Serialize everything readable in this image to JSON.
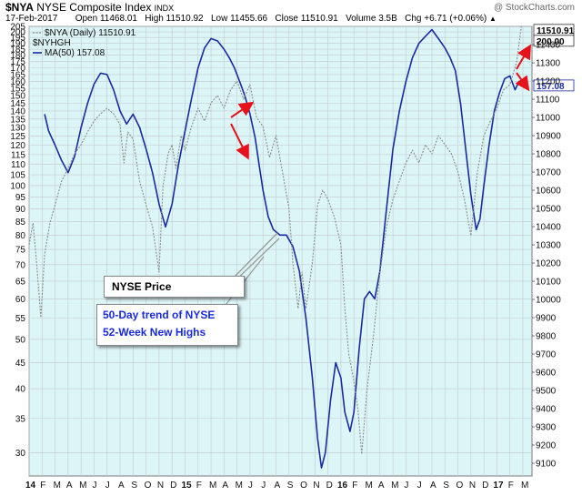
{
  "header": {
    "symbol": "$NYA",
    "name": "NYSE Composite Index",
    "exchange": "INDX",
    "watermark": "@ StockCharts.com",
    "date": "17-Feb-2017",
    "open_label": "Open",
    "open": "11468.01",
    "high_label": "High",
    "high": "11510.92",
    "low_label": "Low",
    "low": "11455.66",
    "close_label": "Close",
    "close": "11510.91",
    "volume_label": "Volume",
    "volume": "3.5B",
    "chg_label": "Chg",
    "chg": "+6.71 (+0.06%)"
  },
  "legend": {
    "line1": "$NYA (Daily) 11510.91",
    "line2": "$NYHGH",
    "line3": "MA(50) 157.08"
  },
  "price_tags": {
    "price": "11510.91",
    "ma_high": "200.00",
    "ma_low": "157.08"
  },
  "callouts": {
    "price": "NYSE Price",
    "trend_line1": "50-Day trend of NYSE",
    "trend_line2": "52-Week New Highs"
  },
  "colors": {
    "plot_bg": "#dcf6f8",
    "ma_line": "#1a2aa0",
    "price_line": "#8c8c8c",
    "arrow": "#e8101a",
    "callout_text_blue": "#1a2ae0"
  },
  "chart_data": {
    "type": "line",
    "left_axis": {
      "label": "$NYHGH MA(50)",
      "scale": "log",
      "ticks": [
        30,
        35,
        40,
        45,
        50,
        55,
        60,
        65,
        70,
        75,
        80,
        85,
        90,
        95,
        100,
        105,
        110,
        115,
        120,
        125,
        130,
        135,
        140,
        145,
        150,
        155,
        160,
        165,
        170,
        175,
        180,
        185,
        190,
        195,
        200,
        205
      ],
      "ylim": [
        27,
        205
      ]
    },
    "right_axis": {
      "label": "$NYA",
      "ticks": [
        9100,
        9200,
        9300,
        9400,
        9500,
        9600,
        9700,
        9800,
        9900,
        10000,
        10100,
        10200,
        10300,
        10400,
        10500,
        10600,
        10700,
        10800,
        10900,
        11000,
        11100,
        11200,
        11300,
        11400
      ],
      "ylim": [
        9030,
        11500
      ]
    },
    "x_ticks": [
      "14",
      "F",
      "M",
      "A",
      "M",
      "J",
      "J",
      "A",
      "S",
      "O",
      "N",
      "D",
      "15",
      "F",
      "M",
      "A",
      "M",
      "J",
      "J",
      "A",
      "S",
      "O",
      "N",
      "D",
      "16",
      "F",
      "M",
      "A",
      "M",
      "J",
      "J",
      "A",
      "S",
      "O",
      "N",
      "D",
      "17",
      "F",
      "M"
    ],
    "x_range_months": [
      0,
      38.7
    ],
    "grid": true,
    "series": [
      {
        "name": "MA(50)",
        "axis": "left",
        "style": "solid",
        "points": [
          [
            1.2,
            138
          ],
          [
            1.5,
            128
          ],
          [
            2.0,
            120
          ],
          [
            2.5,
            112
          ],
          [
            3.0,
            106
          ],
          [
            3.5,
            114
          ],
          [
            4.0,
            130
          ],
          [
            4.5,
            145
          ],
          [
            5.0,
            158
          ],
          [
            5.5,
            166
          ],
          [
            6.0,
            165
          ],
          [
            6.5,
            154
          ],
          [
            7.0,
            140
          ],
          [
            7.5,
            132
          ],
          [
            8.0,
            138
          ],
          [
            8.5,
            130
          ],
          [
            9.0,
            118
          ],
          [
            9.5,
            106
          ],
          [
            10.0,
            92
          ],
          [
            10.5,
            83
          ],
          [
            11.0,
            92
          ],
          [
            11.5,
            110
          ],
          [
            12.0,
            128
          ],
          [
            12.5,
            148
          ],
          [
            13.0,
            170
          ],
          [
            13.5,
            186
          ],
          [
            14.0,
            194
          ],
          [
            14.5,
            192
          ],
          [
            15.0,
            185
          ],
          [
            15.4,
            178
          ],
          [
            15.8,
            170
          ],
          [
            16.2,
            160
          ],
          [
            16.6,
            150
          ],
          [
            17.0,
            138
          ],
          [
            17.4,
            124
          ],
          [
            17.7,
            110
          ],
          [
            18.0,
            98
          ],
          [
            18.4,
            87
          ],
          [
            18.8,
            82
          ],
          [
            19.3,
            80
          ],
          [
            19.8,
            80
          ],
          [
            20.3,
            76
          ],
          [
            20.8,
            68
          ],
          [
            21.3,
            55
          ],
          [
            21.8,
            42
          ],
          [
            22.2,
            32
          ],
          [
            22.5,
            28
          ],
          [
            22.8,
            30
          ],
          [
            23.2,
            38
          ],
          [
            23.6,
            45
          ],
          [
            24.0,
            42
          ],
          [
            24.3,
            36
          ],
          [
            24.7,
            33
          ],
          [
            25.0,
            36
          ],
          [
            25.4,
            48
          ],
          [
            25.8,
            60
          ],
          [
            26.2,
            62
          ],
          [
            26.6,
            60
          ],
          [
            27.0,
            68
          ],
          [
            27.5,
            90
          ],
          [
            28.0,
            118
          ],
          [
            28.5,
            140
          ],
          [
            29.0,
            160
          ],
          [
            29.5,
            178
          ],
          [
            30.0,
            190
          ],
          [
            30.5,
            196
          ],
          [
            31.0,
            202
          ],
          [
            31.5,
            194
          ],
          [
            32.0,
            186
          ],
          [
            32.4,
            178
          ],
          [
            32.8,
            168
          ],
          [
            33.2,
            145
          ],
          [
            33.6,
            118
          ],
          [
            34.0,
            96
          ],
          [
            34.4,
            82
          ],
          [
            34.7,
            86
          ],
          [
            35.0,
            100
          ],
          [
            35.4,
            120
          ],
          [
            35.8,
            140
          ],
          [
            36.2,
            152
          ],
          [
            36.6,
            162
          ],
          [
            37.0,
            164
          ],
          [
            37.4,
            154
          ],
          [
            37.7,
            160
          ],
          [
            37.9,
            157
          ]
        ]
      },
      {
        "name": "$NYA (Daily)",
        "axis": "right",
        "style": "dotted",
        "points": [
          [
            0.0,
            10300
          ],
          [
            0.3,
            10420
          ],
          [
            0.6,
            10180
          ],
          [
            0.9,
            9900
          ],
          [
            1.2,
            10250
          ],
          [
            1.6,
            10420
          ],
          [
            2.0,
            10520
          ],
          [
            2.5,
            10650
          ],
          [
            3.0,
            10720
          ],
          [
            3.5,
            10800
          ],
          [
            4.0,
            10850
          ],
          [
            4.5,
            10920
          ],
          [
            5.0,
            10980
          ],
          [
            5.5,
            11020
          ],
          [
            6.0,
            11050
          ],
          [
            6.5,
            11020
          ],
          [
            7.0,
            10960
          ],
          [
            7.3,
            10750
          ],
          [
            7.6,
            10920
          ],
          [
            8.0,
            10880
          ],
          [
            8.5,
            10650
          ],
          [
            9.0,
            10520
          ],
          [
            9.5,
            10400
          ],
          [
            10.0,
            10150
          ],
          [
            10.3,
            10620
          ],
          [
            10.7,
            10800
          ],
          [
            11.0,
            10850
          ],
          [
            11.3,
            10720
          ],
          [
            11.7,
            10900
          ],
          [
            12.0,
            10820
          ],
          [
            12.5,
            10950
          ],
          [
            13.0,
            11050
          ],
          [
            13.5,
            10980
          ],
          [
            14.0,
            11080
          ],
          [
            14.5,
            11120
          ],
          [
            15.0,
            11050
          ],
          [
            15.5,
            11150
          ],
          [
            16.0,
            11200
          ],
          [
            16.5,
            11100
          ],
          [
            17.0,
            11180
          ],
          [
            17.5,
            11000
          ],
          [
            18.0,
            10950
          ],
          [
            18.5,
            10780
          ],
          [
            19.0,
            10900
          ],
          [
            19.5,
            10700
          ],
          [
            20.0,
            10500
          ],
          [
            20.3,
            10200
          ],
          [
            20.7,
            9950
          ],
          [
            21.0,
            10150
          ],
          [
            21.3,
            9950
          ],
          [
            21.8,
            10200
          ],
          [
            22.2,
            10520
          ],
          [
            22.6,
            10600
          ],
          [
            23.0,
            10550
          ],
          [
            23.5,
            10450
          ],
          [
            24.0,
            10300
          ],
          [
            24.3,
            9950
          ],
          [
            24.6,
            9700
          ],
          [
            25.0,
            9550
          ],
          [
            25.3,
            9400
          ],
          [
            25.6,
            9150
          ],
          [
            26.0,
            9500
          ],
          [
            26.5,
            9800
          ],
          [
            27.0,
            10150
          ],
          [
            27.5,
            10400
          ],
          [
            28.0,
            10550
          ],
          [
            28.5,
            10650
          ],
          [
            29.0,
            10750
          ],
          [
            29.5,
            10820
          ],
          [
            30.0,
            10750
          ],
          [
            30.5,
            10850
          ],
          [
            31.0,
            10800
          ],
          [
            31.5,
            10900
          ],
          [
            32.0,
            10850
          ],
          [
            32.5,
            10800
          ],
          [
            33.0,
            10700
          ],
          [
            33.5,
            10550
          ],
          [
            34.0,
            10350
          ],
          [
            34.5,
            10700
          ],
          [
            35.0,
            10900
          ],
          [
            35.5,
            10980
          ],
          [
            36.0,
            11050
          ],
          [
            36.5,
            11150
          ],
          [
            37.0,
            11180
          ],
          [
            37.5,
            11300
          ],
          [
            37.9,
            11510
          ]
        ]
      }
    ]
  }
}
